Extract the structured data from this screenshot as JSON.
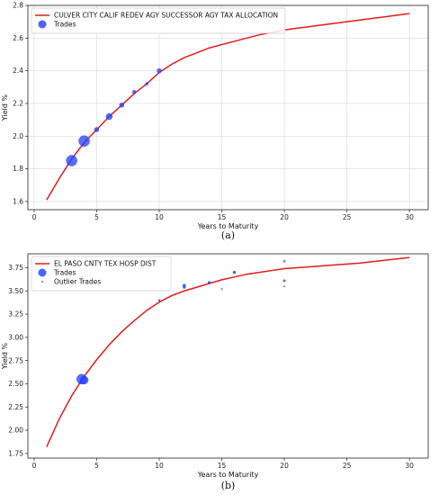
{
  "chart_data": [
    {
      "type": "line",
      "panel_label": "(a)",
      "xlabel": "Years to Maturity",
      "ylabel": "Yield %",
      "xlim": [
        -0.5,
        31.5
      ],
      "ylim": [
        1.55,
        2.8
      ],
      "xticks": [
        0,
        5,
        10,
        15,
        20,
        25,
        30
      ],
      "yticks": [
        1.6,
        1.8,
        2.0,
        2.2,
        2.4,
        2.6,
        2.8
      ],
      "ytick_labels": [
        "1.6",
        "1.8",
        "2.0",
        "2.2",
        "2.4",
        "2.6",
        "2.8"
      ],
      "grid": true,
      "legend_position": "upper-left",
      "series": [
        {
          "name": "CULVER CITY CALIF REDEV AGY SUCCESSOR AGY TAX ALLOCATION",
          "kind": "line",
          "color": "#e31a1c",
          "x": [
            1,
            2,
            3,
            4,
            5,
            6,
            7,
            8,
            9,
            10,
            11,
            12,
            13,
            14,
            15,
            16,
            17,
            18,
            19,
            20,
            21,
            22,
            23,
            24,
            25,
            26,
            27,
            28,
            29,
            30
          ],
          "y": [
            1.61,
            1.74,
            1.86,
            1.96,
            2.04,
            2.12,
            2.19,
            2.26,
            2.32,
            2.39,
            2.44,
            2.48,
            2.51,
            2.54,
            2.56,
            2.58,
            2.6,
            2.62,
            2.635,
            2.65,
            2.66,
            2.67,
            2.68,
            2.69,
            2.7,
            2.71,
            2.72,
            2.73,
            2.74,
            2.75
          ]
        },
        {
          "name": "Trades",
          "kind": "scatter",
          "color": "#1f3fff",
          "points": [
            {
              "x": 3,
              "y": 1.85,
              "size": 6
            },
            {
              "x": 4,
              "y": 1.97,
              "size": 6
            },
            {
              "x": 5,
              "y": 2.04,
              "size": 2.5
            },
            {
              "x": 6,
              "y": 2.12,
              "size": 3.5
            },
            {
              "x": 7,
              "y": 2.19,
              "size": 2.5
            },
            {
              "x": 8,
              "y": 2.27,
              "size": 2
            },
            {
              "x": 9,
              "y": 2.32,
              "size": 1.5
            },
            {
              "x": 10,
              "y": 2.4,
              "size": 2.5
            }
          ]
        }
      ]
    },
    {
      "type": "line",
      "panel_label": "(b)",
      "xlabel": "Years to Maturity",
      "ylabel": "Yield %",
      "xlim": [
        -0.5,
        31.5
      ],
      "ylim": [
        1.7,
        3.9
      ],
      "xticks": [
        0,
        5,
        10,
        15,
        20,
        25,
        30
      ],
      "yticks": [
        1.75,
        2.0,
        2.25,
        2.5,
        2.75,
        3.0,
        3.25,
        3.5,
        3.75
      ],
      "ytick_labels": [
        "1.75",
        "2.00",
        "2.25",
        "2.50",
        "2.75",
        "3.00",
        "3.25",
        "3.50",
        "3.75"
      ],
      "grid": false,
      "legend_position": "upper-left",
      "series": [
        {
          "name": "EL PASO CNTY TEX HOSP DIST",
          "kind": "line",
          "color": "#e31a1c",
          "x": [
            1,
            2,
            3,
            4,
            5,
            6,
            7,
            8,
            9,
            10,
            11,
            12,
            13,
            14,
            15,
            16,
            17,
            18,
            19,
            20,
            22,
            24,
            26,
            28,
            30
          ],
          "y": [
            1.82,
            2.12,
            2.37,
            2.58,
            2.76,
            2.92,
            3.06,
            3.18,
            3.29,
            3.38,
            3.45,
            3.5,
            3.54,
            3.58,
            3.62,
            3.65,
            3.68,
            3.7,
            3.72,
            3.74,
            3.76,
            3.78,
            3.8,
            3.83,
            3.86
          ]
        },
        {
          "name": "Trades",
          "kind": "scatter",
          "color": "#1f3fff",
          "points": [
            {
              "x": 3.8,
              "y": 2.55,
              "size": 5.5
            },
            {
              "x": 4.0,
              "y": 2.54,
              "size": 4.5
            },
            {
              "x": 10,
              "y": 3.4,
              "size": 1
            },
            {
              "x": 12,
              "y": 3.54,
              "size": 1.5
            },
            {
              "x": 12,
              "y": 3.56,
              "size": 1.5
            },
            {
              "x": 14,
              "y": 3.59,
              "size": 1.5
            },
            {
              "x": 16,
              "y": 3.7,
              "size": 1.5
            },
            {
              "x": 20,
              "y": 3.61,
              "size": 1.2
            }
          ]
        },
        {
          "name": "Outlier Trades",
          "kind": "scatter",
          "color": "#8c8c8c",
          "points": [
            {
              "x": 15,
              "y": 3.52,
              "size": 1
            },
            {
              "x": 20,
              "y": 3.82,
              "size": 1.5
            },
            {
              "x": 20,
              "y": 3.55,
              "size": 1
            }
          ]
        }
      ]
    }
  ]
}
